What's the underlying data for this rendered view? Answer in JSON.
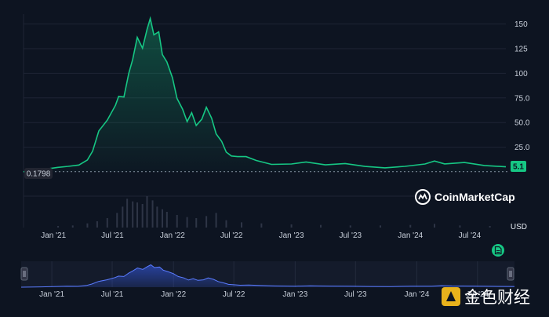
{
  "chart_data": {
    "type": "line",
    "currency_label": "USD",
    "yticks": [
      25,
      50,
      75,
      100,
      125,
      150
    ],
    "ytick_labels": [
      "25.0",
      "50.0",
      "75.0",
      "100",
      "125",
      "150"
    ],
    "xticks": [
      {
        "date": "2021-01-01",
        "label": "Jan '21"
      },
      {
        "date": "2021-07-01",
        "label": "Jul '21"
      },
      {
        "date": "2022-01-01",
        "label": "Jan '22"
      },
      {
        "date": "2022-07-01",
        "label": "Jul '22"
      },
      {
        "date": "2023-01-01",
        "label": "Jan '23"
      },
      {
        "date": "2023-07-01",
        "label": "Jul '23"
      },
      {
        "date": "2024-01-01",
        "label": "Jan '24"
      },
      {
        "date": "2024-07-01",
        "label": "Jul '24"
      }
    ],
    "ylim": [
      0,
      160
    ],
    "xlim": [
      "2020-10-01",
      "2024-10-20"
    ],
    "open_value": "0.1798",
    "current_value": "5.1",
    "series": [
      {
        "points": [
          [
            "2020-10-01",
            0.18
          ],
          [
            "2020-12-01",
            2
          ],
          [
            "2021-01-15",
            5
          ],
          [
            "2021-02-15",
            7
          ],
          [
            "2021-03-20",
            6
          ],
          [
            "2021-04-15",
            12
          ],
          [
            "2021-05-01",
            22
          ],
          [
            "2021-05-20",
            40
          ],
          [
            "2021-06-15",
            52
          ],
          [
            "2021-07-10",
            68
          ],
          [
            "2021-07-20",
            78
          ],
          [
            "2021-08-05",
            75
          ],
          [
            "2021-08-20",
            100
          ],
          [
            "2021-09-01",
            115
          ],
          [
            "2021-09-15",
            135
          ],
          [
            "2021-10-01",
            125
          ],
          [
            "2021-10-15",
            145
          ],
          [
            "2021-10-25",
            157
          ],
          [
            "2021-11-05",
            138
          ],
          [
            "2021-11-20",
            142
          ],
          [
            "2021-12-01",
            120
          ],
          [
            "2021-12-15",
            110
          ],
          [
            "2022-01-01",
            95
          ],
          [
            "2022-01-15",
            75
          ],
          [
            "2022-02-01",
            65
          ],
          [
            "2022-02-15",
            50
          ],
          [
            "2022-03-01",
            60
          ],
          [
            "2022-03-15",
            48
          ],
          [
            "2022-04-01",
            52
          ],
          [
            "2022-04-15",
            65
          ],
          [
            "2022-05-01",
            55
          ],
          [
            "2022-05-15",
            40
          ],
          [
            "2022-06-01",
            30
          ],
          [
            "2022-06-15",
            20
          ],
          [
            "2022-07-01",
            17
          ],
          [
            "2022-07-20",
            14
          ],
          [
            "2022-08-15",
            15
          ],
          [
            "2022-09-15",
            12
          ],
          [
            "2022-11-01",
            9
          ],
          [
            "2023-01-01",
            7
          ],
          [
            "2023-02-15",
            10
          ],
          [
            "2023-04-15",
            8
          ],
          [
            "2023-06-15",
            7
          ],
          [
            "2023-08-15",
            5
          ],
          [
            "2023-10-15",
            4.5
          ],
          [
            "2023-12-15",
            7
          ],
          [
            "2024-02-15",
            7
          ],
          [
            "2024-03-15",
            11
          ],
          [
            "2024-04-15",
            9
          ],
          [
            "2024-06-15",
            8
          ],
          [
            "2024-08-15",
            6
          ],
          [
            "2024-10-20",
            5.1
          ]
        ]
      }
    ],
    "volume": [
      [
        "2021-01-15",
        3
      ],
      [
        "2021-03-01",
        4
      ],
      [
        "2021-04-15",
        8
      ],
      [
        "2021-05-15",
        12
      ],
      [
        "2021-06-15",
        18
      ],
      [
        "2021-07-15",
        28
      ],
      [
        "2021-08-01",
        40
      ],
      [
        "2021-08-15",
        55
      ],
      [
        "2021-09-01",
        50
      ],
      [
        "2021-09-15",
        48
      ],
      [
        "2021-10-01",
        45
      ],
      [
        "2021-10-15",
        60
      ],
      [
        "2021-11-01",
        52
      ],
      [
        "2021-11-15",
        40
      ],
      [
        "2021-12-01",
        35
      ],
      [
        "2021-12-15",
        30
      ],
      [
        "2022-01-15",
        24
      ],
      [
        "2022-02-15",
        20
      ],
      [
        "2022-03-15",
        18
      ],
      [
        "2022-04-15",
        22
      ],
      [
        "2022-05-15",
        28
      ],
      [
        "2022-06-15",
        14
      ],
      [
        "2022-08-01",
        10
      ],
      [
        "2022-10-01",
        8
      ],
      [
        "2023-01-01",
        6
      ],
      [
        "2023-04-01",
        5
      ],
      [
        "2023-07-01",
        4
      ],
      [
        "2023-10-01",
        4
      ],
      [
        "2024-01-01",
        5
      ],
      [
        "2024-03-15",
        7
      ],
      [
        "2024-06-01",
        4
      ],
      [
        "2024-09-01",
        3
      ]
    ]
  },
  "brand": {
    "name": "CoinMarketCap",
    "icon": "coinmarketcap-logo-icon"
  },
  "watermark": {
    "text": "金色财经",
    "icon": "jinse-logo-icon"
  },
  "colors": {
    "line": "#16c784",
    "navigator": "#3861fb",
    "background": "#0d1421"
  },
  "navigator": {
    "xticks": [
      "Jan '21",
      "Jul '21",
      "Jan '22",
      "Jul '22",
      "Jan '23",
      "Jul '23",
      "Jan '24",
      "Jul '24"
    ]
  },
  "export_icon": "download-document-icon"
}
